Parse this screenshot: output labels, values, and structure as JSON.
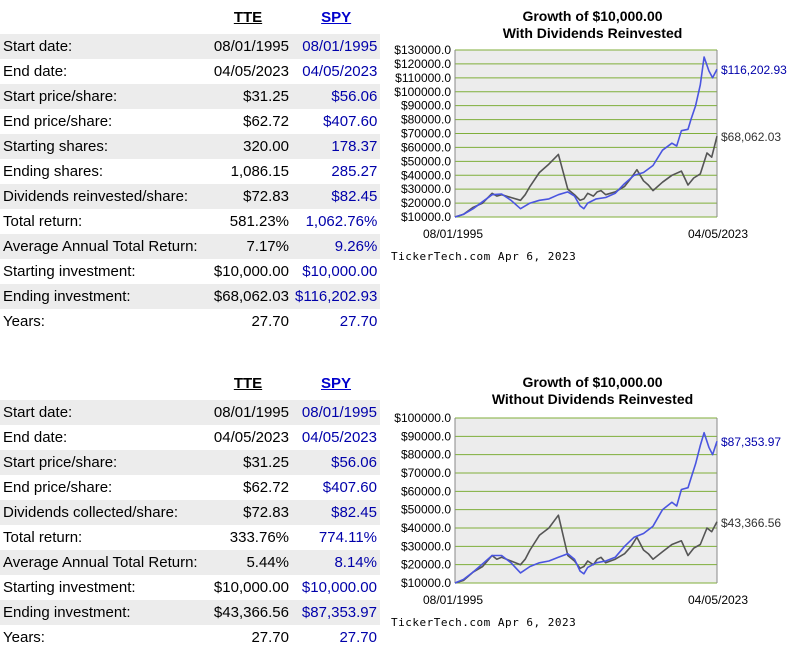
{
  "panels": [
    {
      "headers": {
        "tte": "TTE",
        "spy": "SPY"
      },
      "rows": [
        {
          "label": "Start date:",
          "tte": "08/01/1995",
          "spy": "08/01/1995"
        },
        {
          "label": "End date:",
          "tte": "04/05/2023",
          "spy": "04/05/2023"
        },
        {
          "label": "Start price/share:",
          "tte": "$31.25",
          "spy": "$56.06"
        },
        {
          "label": "End price/share:",
          "tte": "$62.72",
          "spy": "$407.60"
        },
        {
          "label": "Starting shares:",
          "tte": "320.00",
          "spy": "178.37"
        },
        {
          "label": "Ending shares:",
          "tte": "1,086.15",
          "spy": "285.27"
        },
        {
          "label": "Dividends reinvested/share:",
          "tte": "$72.83",
          "spy": "$82.45"
        },
        {
          "label": "Total return:",
          "tte": "581.23%",
          "spy": "1,062.76%"
        },
        {
          "label": "Average Annual Total Return:",
          "tte": "7.17%",
          "spy": "9.26%"
        },
        {
          "label": "Starting investment:",
          "tte": "$10,000.00",
          "spy": "$10,000.00"
        },
        {
          "label": "Ending investment:",
          "tte": "$68,062.03",
          "spy": "$116,202.93"
        },
        {
          "label": "Years:",
          "tte": "27.70",
          "spy": "27.70"
        }
      ],
      "credit": "TickerTech.com Apr 6, 2023"
    },
    {
      "headers": {
        "tte": "TTE",
        "spy": "SPY"
      },
      "rows": [
        {
          "label": "Start date:",
          "tte": "08/01/1995",
          "spy": "08/01/1995"
        },
        {
          "label": "End date:",
          "tte": "04/05/2023",
          "spy": "04/05/2023"
        },
        {
          "label": "Start price/share:",
          "tte": "$31.25",
          "spy": "$56.06"
        },
        {
          "label": "End price/share:",
          "tte": "$62.72",
          "spy": "$407.60"
        },
        {
          "label": "Dividends collected/share:",
          "tte": "$72.83",
          "spy": "$82.45"
        },
        {
          "label": "Total return:",
          "tte": "333.76%",
          "spy": "774.11%"
        },
        {
          "label": "Average Annual Total Return:",
          "tte": "5.44%",
          "spy": "8.14%"
        },
        {
          "label": "Starting investment:",
          "tte": "$10,000.00",
          "spy": "$10,000.00"
        },
        {
          "label": "Ending investment:",
          "tte": "$43,366.56",
          "spy": "$87,353.97"
        },
        {
          "label": "Years:",
          "tte": "27.70",
          "spy": "27.70"
        }
      ],
      "credit": "TickerTech.com Apr 6, 2023"
    }
  ],
  "colors": {
    "tte_line": "#555555",
    "spy_line": "#4a55e0",
    "plot_bg": "#ececec",
    "grid": "#7fae3a",
    "spy_text": "#0000aa"
  },
  "chart_data": [
    {
      "type": "line",
      "title": [
        "Growth of $10,000.00",
        "With Dividends Reinvested"
      ],
      "ylim": [
        10000,
        130000
      ],
      "y_ticks": [
        10000,
        20000,
        30000,
        40000,
        50000,
        60000,
        70000,
        80000,
        90000,
        100000,
        110000,
        120000,
        130000
      ],
      "y_tick_labels": [
        "$10000.0",
        "$20000.0",
        "$30000.0",
        "$40000.0",
        "$50000.0",
        "$60000.0",
        "$70000.0",
        "$80000.0",
        "$90000.0",
        "$100000.0",
        "$110000.0",
        "$120000.0",
        "$130000.0"
      ],
      "x_tick_labels": [
        "08/01/1995",
        "04/05/2023"
      ],
      "xlim": [
        1995.58,
        2023.26
      ],
      "grid": true,
      "series": [
        {
          "key": "tte",
          "end_label": "$68,062.03",
          "x": [
            1995.58,
            1996.5,
            1997.5,
            1998.5,
            1999.5,
            2000.0,
            2000.5,
            2001.5,
            2002.5,
            2003.0,
            2003.5,
            2004.5,
            2005.5,
            2006.5,
            2007.5,
            2008.2,
            2008.8,
            2009.2,
            2009.6,
            2010.2,
            2010.6,
            2011.0,
            2011.5,
            2012.0,
            2012.5,
            2013.5,
            2014.2,
            2014.8,
            2015.5,
            2016.0,
            2016.5,
            2017.5,
            2018.5,
            2019.5,
            2020.2,
            2020.8,
            2021.5,
            2022.2,
            2022.7,
            2023.26
          ],
          "values": [
            10000,
            12000,
            17000,
            20000,
            27000,
            25000,
            26000,
            24000,
            22000,
            26000,
            32000,
            42000,
            48000,
            55000,
            30000,
            26000,
            22000,
            23000,
            27000,
            25000,
            28000,
            29000,
            26000,
            27000,
            28000,
            32000,
            38000,
            44000,
            36000,
            33000,
            29000,
            35000,
            40000,
            43000,
            33000,
            38000,
            41000,
            56000,
            53000,
            68062
          ]
        },
        {
          "key": "spy",
          "end_label": "$116,202.93",
          "x": [
            1995.58,
            1996.5,
            1997.5,
            1998.5,
            1999.5,
            2000.5,
            2001.5,
            2002.5,
            2003.5,
            2004.5,
            2005.5,
            2006.5,
            2007.5,
            2008.2,
            2008.8,
            2009.2,
            2009.6,
            2010.5,
            2011.5,
            2012.5,
            2013.5,
            2014.5,
            2015.5,
            2016.5,
            2017.5,
            2018.5,
            2019.0,
            2019.5,
            2020.2,
            2020.5,
            2021.0,
            2021.5,
            2021.9,
            2022.4,
            2022.8,
            2023.26
          ],
          "values": [
            10000,
            12000,
            16000,
            21000,
            26000,
            26500,
            22000,
            16000,
            20000,
            22000,
            23000,
            26000,
            28000,
            25000,
            18000,
            16000,
            20000,
            23000,
            24000,
            27000,
            34000,
            40000,
            42000,
            47000,
            58000,
            63000,
            61000,
            72000,
            73000,
            80000,
            90000,
            105000,
            125000,
            115000,
            110000,
            116203
          ]
        }
      ]
    },
    {
      "type": "line",
      "title": [
        "Growth of $10,000.00",
        "Without Dividends Reinvested"
      ],
      "ylim": [
        10000,
        100000
      ],
      "y_ticks": [
        10000,
        20000,
        30000,
        40000,
        50000,
        60000,
        70000,
        80000,
        90000,
        100000
      ],
      "y_tick_labels": [
        "$10000.0",
        "$20000.0",
        "$30000.0",
        "$40000.0",
        "$50000.0",
        "$60000.0",
        "$70000.0",
        "$80000.0",
        "$90000.0",
        "$100000.0"
      ],
      "x_tick_labels": [
        "08/01/1995",
        "04/05/2023"
      ],
      "xlim": [
        1995.58,
        2023.26
      ],
      "grid": true,
      "series": [
        {
          "key": "tte",
          "end_label": "$43,366.56",
          "x": [
            1995.58,
            1996.5,
            1997.5,
            1998.5,
            1999.5,
            2000.0,
            2000.5,
            2001.5,
            2002.5,
            2003.0,
            2003.5,
            2004.5,
            2005.5,
            2006.5,
            2007.5,
            2008.2,
            2008.8,
            2009.2,
            2009.6,
            2010.2,
            2010.6,
            2011.0,
            2011.5,
            2012.0,
            2012.5,
            2013.5,
            2014.2,
            2014.8,
            2015.5,
            2016.0,
            2016.5,
            2017.5,
            2018.5,
            2019.5,
            2020.2,
            2020.8,
            2021.5,
            2022.2,
            2022.7,
            2023.26
          ],
          "values": [
            10000,
            11500,
            16000,
            19000,
            25000,
            23000,
            24000,
            22000,
            20000,
            23000,
            28000,
            36000,
            40000,
            47000,
            25000,
            22000,
            18000,
            19000,
            22000,
            20000,
            23000,
            24000,
            21000,
            22000,
            23000,
            26000,
            30000,
            35000,
            28000,
            26000,
            23000,
            27000,
            31000,
            33000,
            25000,
            29000,
            31000,
            40000,
            38000,
            43367
          ]
        },
        {
          "key": "spy",
          "end_label": "$87,353.97",
          "x": [
            1995.58,
            1996.5,
            1997.5,
            1998.5,
            1999.5,
            2000.5,
            2001.5,
            2002.5,
            2003.5,
            2004.5,
            2005.5,
            2006.5,
            2007.5,
            2008.2,
            2008.8,
            2009.2,
            2009.6,
            2010.5,
            2011.5,
            2012.5,
            2013.5,
            2014.5,
            2015.5,
            2016.5,
            2017.5,
            2018.5,
            2019.0,
            2019.5,
            2020.2,
            2020.5,
            2021.0,
            2021.5,
            2021.9,
            2022.4,
            2022.8,
            2023.26
          ],
          "values": [
            10000,
            12000,
            16000,
            20500,
            25000,
            25000,
            21000,
            15500,
            19000,
            21000,
            22000,
            24000,
            26000,
            23000,
            16500,
            15000,
            18500,
            21000,
            22000,
            24000,
            30000,
            35000,
            37000,
            41000,
            50000,
            54000,
            52000,
            61000,
            62000,
            67000,
            75000,
            85000,
            92000,
            84000,
            80000,
            87354
          ]
        }
      ]
    }
  ]
}
